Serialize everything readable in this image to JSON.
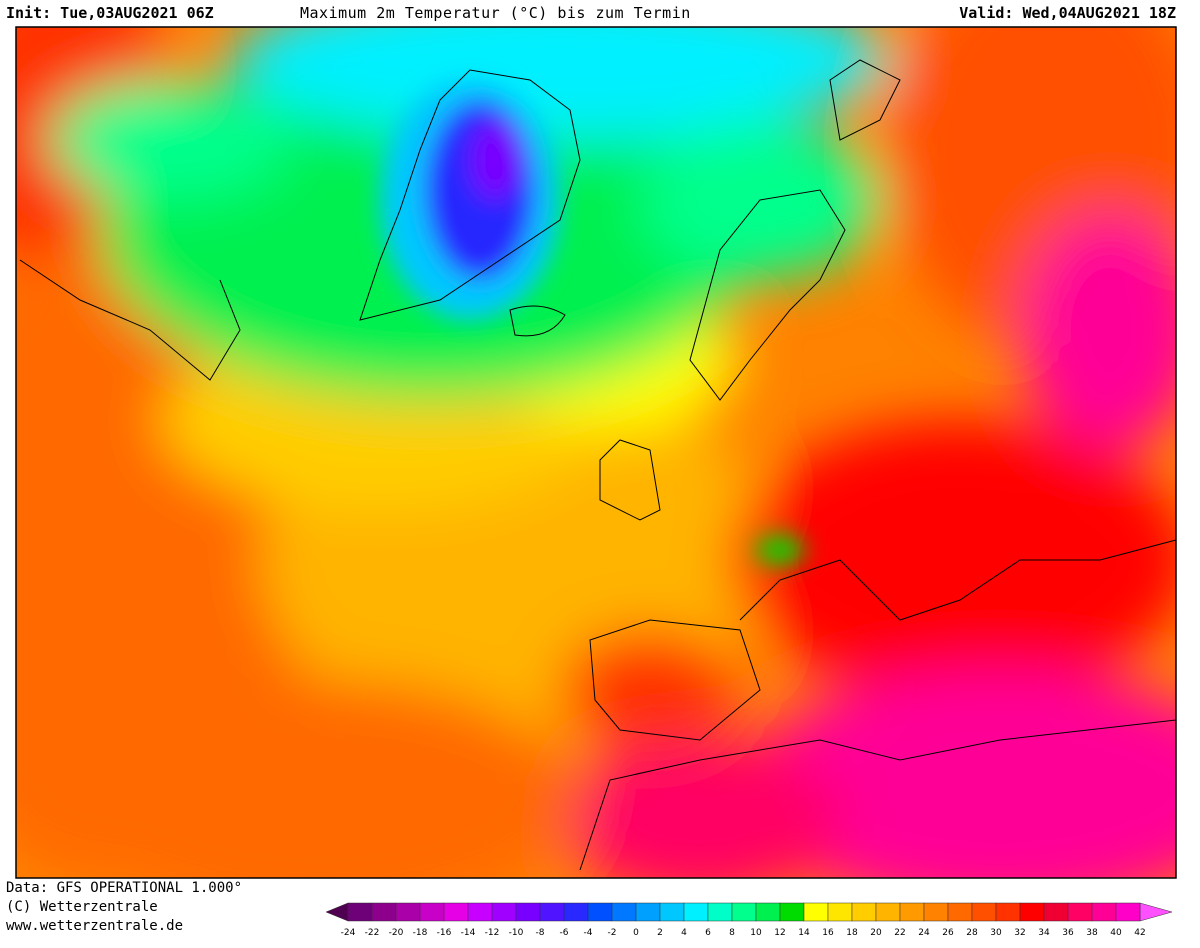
{
  "header": {
    "init": "Init: Tue,03AUG2021 06Z",
    "title": "Maximum 2m Temperatur (°C) bis zum Termin",
    "valid": "Valid: Wed,04AUG2021 18Z"
  },
  "footer": {
    "lines": [
      "Data: GFS OPERATIONAL 1.000°",
      "(C) Wetterzentrale",
      "www.wetterzentrale.de"
    ]
  },
  "legend": {
    "labels": [
      -24,
      -22,
      -20,
      -18,
      -16,
      -14,
      -12,
      -10,
      -8,
      -6,
      -4,
      -2,
      0,
      2,
      4,
      6,
      8,
      10,
      12,
      14,
      16,
      18,
      20,
      22,
      24,
      26,
      28,
      30,
      32,
      34,
      36,
      38,
      40,
      42
    ],
    "low_color": "#500050",
    "high_color": "#ff50ff",
    "colors": [
      "#6e0078",
      "#8c008c",
      "#aa00aa",
      "#c800c8",
      "#e600e6",
      "#c800ff",
      "#a000ff",
      "#7800ff",
      "#5014ff",
      "#2828ff",
      "#0050ff",
      "#0078ff",
      "#00a0ff",
      "#00c8ff",
      "#00f0ff",
      "#00ffc8",
      "#00ff8c",
      "#00f050",
      "#00dc00",
      "#ffff00",
      "#ffe600",
      "#ffcd00",
      "#ffb400",
      "#ff9b00",
      "#ff8200",
      "#ff6900",
      "#ff5000",
      "#ff3200",
      "#ff0000",
      "#f00032",
      "#ff0064",
      "#ff0096",
      "#ff00c8"
    ]
  }
}
